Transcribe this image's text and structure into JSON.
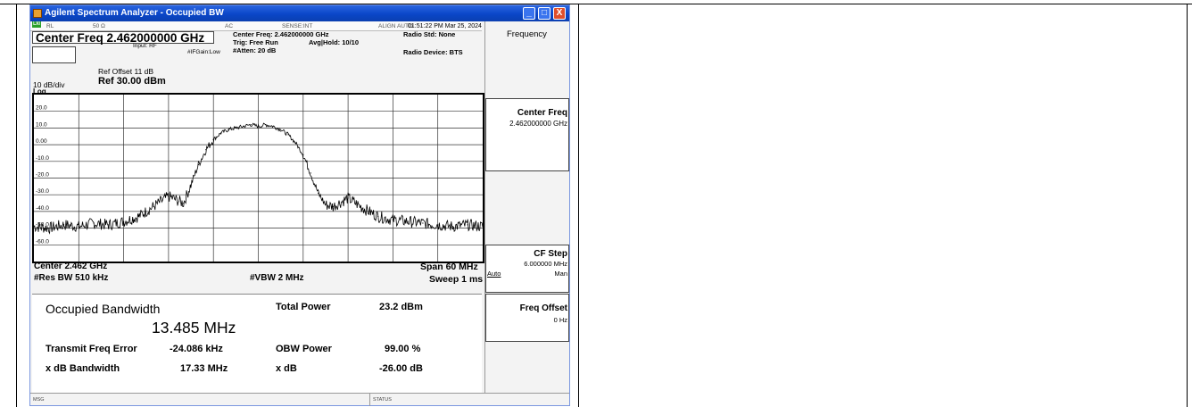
{
  "window": {
    "title": "Agilent Spectrum Analyzer - Occupied BW",
    "minimize": "_",
    "maximize": "□",
    "close": "X"
  },
  "status": {
    "badge": "LXI",
    "rl": "RL",
    "impedance": "50 Ω",
    "coupling": "AC",
    "sense": "SENSE:INT",
    "align": "ALIGN AUTO",
    "datetime": "01:51:22 PM Mar 25, 2024"
  },
  "header": {
    "center_freq": "Center Freq  2.462000000 GHz",
    "input": "Input: RF",
    "ifgain": "#IFGain:Low",
    "cf_readout": "Center Freq: 2.462000000 GHz",
    "trig": "Trig: Free Run",
    "avg": "Avg|Hold: 10/10",
    "atten": "#Atten: 20 dB",
    "radio_std": "Radio Std: None",
    "radio_device": "Radio Device: BTS"
  },
  "scale": {
    "ref_offset": "Ref Offset 11 dB",
    "div": "10 dB/div",
    "ref": "Ref 30.00 dBm",
    "log": "Log",
    "ticks": [
      "20.0",
      "10.0",
      "0.00",
      "-10.0",
      "-20.0",
      "-30.0",
      "-40.0",
      "-50.0",
      "-60.0"
    ]
  },
  "footer": {
    "center": "Center  2.462 GHz",
    "rbw": "#Res BW  510 kHz",
    "vbw": "#VBW  2 MHz",
    "span": "Span 60 MHz",
    "sweep": "Sweep  1 ms"
  },
  "results": {
    "obw_label": "Occupied Bandwidth",
    "obw_value": "13.485 MHz",
    "total_power_label": "Total Power",
    "total_power_value": "23.2 dBm",
    "tfe_label": "Transmit Freq Error",
    "tfe_value": "-24.086 kHz",
    "obw_power_label": "OBW Power",
    "obw_power_value": "99.00 %",
    "xdb_bw_label": "x dB Bandwidth",
    "xdb_bw_value": "17.33 MHz",
    "xdb_label": "x dB",
    "xdb_value": "-26.00 dB"
  },
  "softkeys": {
    "menu": "Frequency",
    "center_freq_label": "Center Freq",
    "center_freq_value": "2.462000000 GHz",
    "cf_step_label": "CF Step",
    "cf_step_value": "6.000000 MHz",
    "cf_step_auto": "Auto",
    "cf_step_man": "Man",
    "freq_offset_label": "Freq Offset",
    "freq_offset_value": "0 Hz"
  },
  "bottom": {
    "msg": "MSG",
    "status": "STATUS"
  },
  "chart_data": {
    "type": "line",
    "x": [
      -30,
      -28,
      -26,
      -24,
      -22,
      -20,
      -18,
      -16,
      -14,
      -12,
      -10,
      -9,
      -8,
      -7,
      -6,
      -5,
      -4,
      -3,
      -2,
      -1,
      0,
      1,
      2,
      3,
      4,
      5,
      6,
      7,
      8,
      9,
      10,
      12,
      14,
      16,
      18,
      20,
      22,
      24,
      26,
      28,
      30
    ],
    "y": [
      -49,
      -50,
      -48,
      -49,
      -47,
      -48,
      -46,
      -43,
      -37,
      -31,
      -35,
      -24,
      -12,
      -3,
      3,
      7,
      9,
      10,
      11,
      12,
      11,
      12,
      11,
      9,
      6,
      1,
      -6,
      -17,
      -29,
      -36,
      -37,
      -32,
      -38,
      -43,
      -45,
      -46,
      -47,
      -48,
      -49,
      -48,
      -49
    ],
    "xlabel": "",
    "ylabel": "",
    "xlim": [
      -30,
      30
    ],
    "ylim": [
      -70,
      30
    ],
    "grid": true
  }
}
